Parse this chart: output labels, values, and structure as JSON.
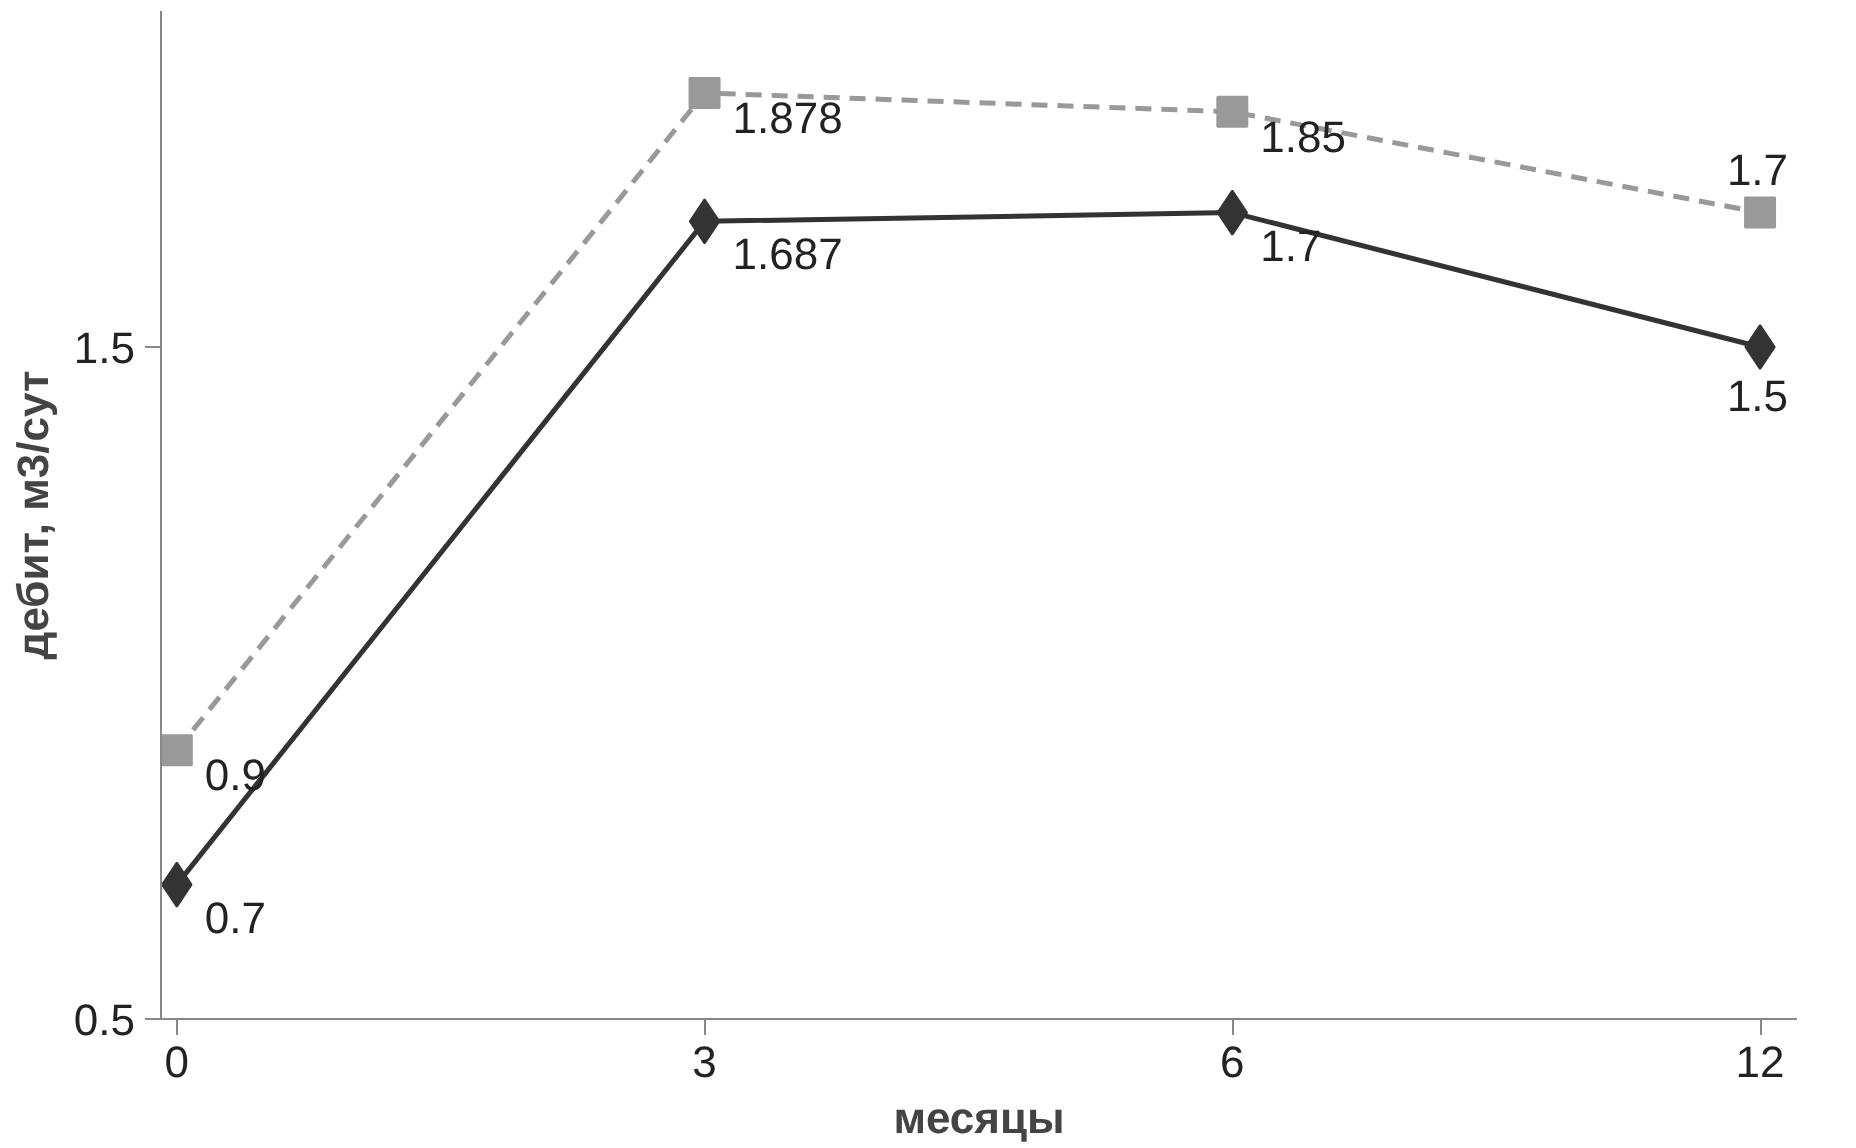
{
  "chart_data": {
    "type": "line",
    "xlabel": "месяцы",
    "ylabel": "дебит, м3/сут",
    "categories": [
      "0",
      "3",
      "6",
      "12"
    ],
    "ylim": [
      0.5,
      2.0
    ],
    "yticks": [
      0.5,
      1.5
    ],
    "series": [
      {
        "color": "#999999",
        "values": [
          0.9,
          1.878,
          1.85,
          1.7
        ],
        "marker": "square",
        "line_style": "dashed"
      },
      {
        "color": "#333333",
        "values": [
          0.7,
          1.687,
          1.7,
          1.5
        ],
        "marker": "diamond",
        "line_style": "solid"
      }
    ],
    "data_labels": true,
    "grid": false
  }
}
